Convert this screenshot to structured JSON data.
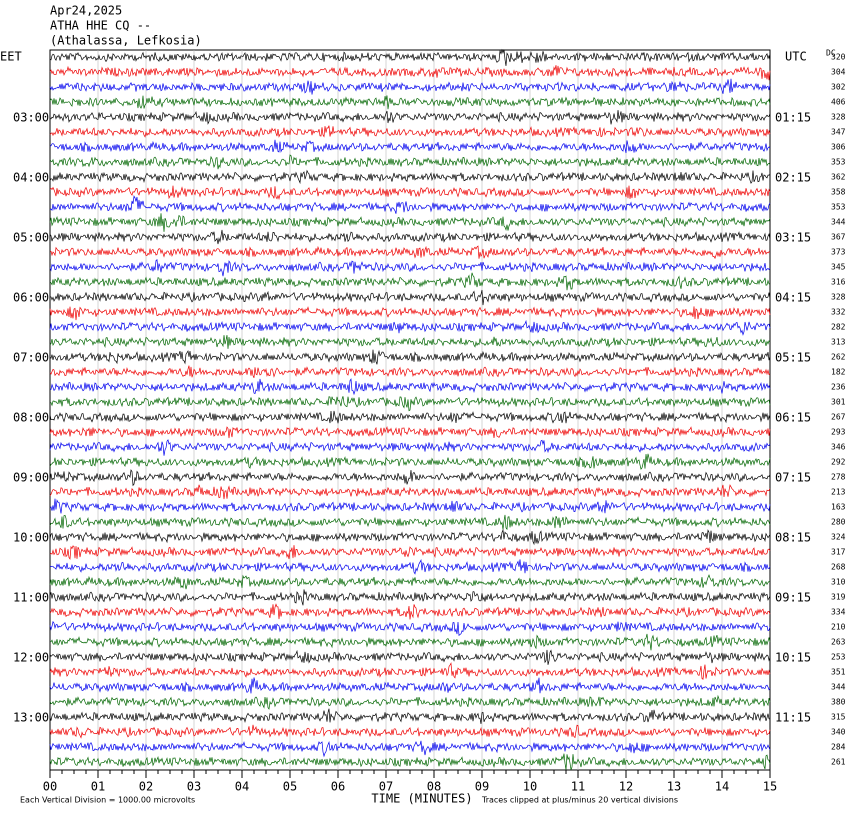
{
  "header": {
    "lines": [
      "Apr24,2025",
      "ATHA HHE CQ --",
      "(Athalassa, Lefkosia)"
    ]
  },
  "left_axis": {
    "title": "EET",
    "labels": [
      "03:00",
      "04:00",
      "05:00",
      "06:00",
      "07:00",
      "08:00",
      "09:00",
      "10:00",
      "11:00",
      "12:00",
      "13:00"
    ]
  },
  "right_axis": {
    "title": "UTC",
    "labels": [
      "01:15",
      "02:15",
      "03:15",
      "04:15",
      "05:15",
      "06:15",
      "07:15",
      "08:15",
      "09:15",
      "10:15",
      "11:15"
    ]
  },
  "dc": {
    "title": "DC",
    "values": [
      320,
      304,
      302,
      406,
      328,
      347,
      306,
      353,
      362,
      358,
      353,
      344,
      367,
      373,
      345,
      316,
      328,
      332,
      282,
      313,
      262,
      182,
      236,
      301,
      267,
      293,
      346,
      292,
      278,
      213,
      163,
      280,
      324,
      317,
      268,
      310,
      319,
      334,
      210,
      263,
      253,
      351,
      344,
      380,
      315,
      340,
      284,
      261
    ]
  },
  "x_axis": {
    "title": "TIME (MINUTES)",
    "labels": [
      "00",
      "01",
      "02",
      "03",
      "04",
      "05",
      "06",
      "07",
      "08",
      "09",
      "10",
      "11",
      "12",
      "13",
      "14",
      "15"
    ]
  },
  "footer": {
    "scale": "Each Vertical Division = 1000.00 microvolts",
    "clip": "Traces clipped at plus/minus 20 vertical divisions"
  }
}
